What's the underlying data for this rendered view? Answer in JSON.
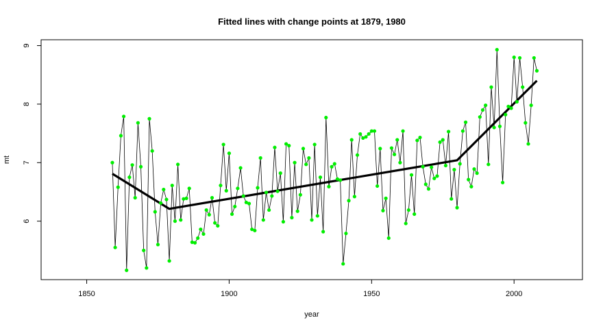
{
  "chart_data": {
    "type": "line",
    "title": "Fitted lines with change points at 1879, 1980",
    "xlabel": "year",
    "ylabel": "mt",
    "xlim": [
      1834,
      2024
    ],
    "ylim": [
      5.0,
      9.1
    ],
    "x_ticks": [
      "1850",
      "1900",
      "1950",
      "2000"
    ],
    "y_ticks": [
      "6",
      "7",
      "8",
      "9"
    ],
    "grid": false,
    "legend": "none",
    "colors": {
      "points": "#00ee00",
      "observed_line": "#000000",
      "fitted_line": "#000000"
    },
    "series": [
      {
        "values": [
          {
            "x": 1859,
            "y": 7.0
          },
          {
            "x": 1860,
            "y": 5.55
          },
          {
            "x": 1861,
            "y": 6.58
          },
          {
            "x": 1862,
            "y": 7.46
          },
          {
            "x": 1863,
            "y": 7.79
          },
          {
            "x": 1864,
            "y": 5.16
          },
          {
            "x": 1865,
            "y": 6.75
          },
          {
            "x": 1866,
            "y": 6.96
          },
          {
            "x": 1867,
            "y": 6.4
          },
          {
            "x": 1868,
            "y": 7.68
          },
          {
            "x": 1869,
            "y": 6.93
          },
          {
            "x": 1870,
            "y": 5.5
          },
          {
            "x": 1871,
            "y": 5.2
          },
          {
            "x": 1872,
            "y": 7.75
          },
          {
            "x": 1873,
            "y": 7.2
          },
          {
            "x": 1874,
            "y": 6.16
          },
          {
            "x": 1875,
            "y": 5.6
          },
          {
            "x": 1876,
            "y": 6.31
          },
          {
            "x": 1877,
            "y": 6.54
          },
          {
            "x": 1878,
            "y": 6.37
          },
          {
            "x": 1879,
            "y": 5.32
          },
          {
            "x": 1880,
            "y": 6.61
          },
          {
            "x": 1881,
            "y": 6.0
          },
          {
            "x": 1882,
            "y": 6.97
          },
          {
            "x": 1883,
            "y": 6.02
          },
          {
            "x": 1884,
            "y": 6.38
          },
          {
            "x": 1885,
            "y": 6.39
          },
          {
            "x": 1886,
            "y": 6.56
          },
          {
            "x": 1887,
            "y": 5.64
          },
          {
            "x": 1888,
            "y": 5.63
          },
          {
            "x": 1889,
            "y": 5.71
          },
          {
            "x": 1890,
            "y": 5.86
          },
          {
            "x": 1891,
            "y": 5.78
          },
          {
            "x": 1892,
            "y": 6.19
          },
          {
            "x": 1893,
            "y": 6.11
          },
          {
            "x": 1894,
            "y": 6.4
          },
          {
            "x": 1895,
            "y": 5.97
          },
          {
            "x": 1896,
            "y": 5.92
          },
          {
            "x": 1897,
            "y": 6.61
          },
          {
            "x": 1898,
            "y": 7.31
          },
          {
            "x": 1899,
            "y": 6.52
          },
          {
            "x": 1900,
            "y": 7.16
          },
          {
            "x": 1901,
            "y": 6.12
          },
          {
            "x": 1902,
            "y": 6.25
          },
          {
            "x": 1903,
            "y": 6.56
          },
          {
            "x": 1904,
            "y": 6.91
          },
          {
            "x": 1905,
            "y": 6.43
          },
          {
            "x": 1906,
            "y": 6.32
          },
          {
            "x": 1907,
            "y": 6.3
          },
          {
            "x": 1908,
            "y": 5.86
          },
          {
            "x": 1909,
            "y": 5.84
          },
          {
            "x": 1910,
            "y": 6.57
          },
          {
            "x": 1911,
            "y": 7.08
          },
          {
            "x": 1912,
            "y": 6.02
          },
          {
            "x": 1913,
            "y": 6.49
          },
          {
            "x": 1914,
            "y": 6.19
          },
          {
            "x": 1915,
            "y": 6.43
          },
          {
            "x": 1916,
            "y": 7.26
          },
          {
            "x": 1917,
            "y": 6.51
          },
          {
            "x": 1918,
            "y": 6.82
          },
          {
            "x": 1919,
            "y": 5.99
          },
          {
            "x": 1920,
            "y": 7.32
          },
          {
            "x": 1921,
            "y": 7.29
          },
          {
            "x": 1922,
            "y": 6.06
          },
          {
            "x": 1923,
            "y": 7.0
          },
          {
            "x": 1924,
            "y": 6.17
          },
          {
            "x": 1925,
            "y": 6.45
          },
          {
            "x": 1926,
            "y": 7.24
          },
          {
            "x": 1927,
            "y": 6.97
          },
          {
            "x": 1928,
            "y": 7.08
          },
          {
            "x": 1929,
            "y": 6.02
          },
          {
            "x": 1930,
            "y": 7.31
          },
          {
            "x": 1931,
            "y": 6.09
          },
          {
            "x": 1932,
            "y": 6.75
          },
          {
            "x": 1933,
            "y": 5.82
          },
          {
            "x": 1934,
            "y": 7.77
          },
          {
            "x": 1935,
            "y": 6.59
          },
          {
            "x": 1936,
            "y": 6.93
          },
          {
            "x": 1937,
            "y": 6.98
          },
          {
            "x": 1938,
            "y": 6.72
          },
          {
            "x": 1939,
            "y": 6.7
          },
          {
            "x": 1940,
            "y": 5.27
          },
          {
            "x": 1941,
            "y": 5.79
          },
          {
            "x": 1942,
            "y": 6.35
          },
          {
            "x": 1943,
            "y": 7.39
          },
          {
            "x": 1944,
            "y": 6.42
          },
          {
            "x": 1945,
            "y": 7.13
          },
          {
            "x": 1946,
            "y": 7.49
          },
          {
            "x": 1947,
            "y": 7.42
          },
          {
            "x": 1948,
            "y": 7.44
          },
          {
            "x": 1949,
            "y": 7.49
          },
          {
            "x": 1950,
            "y": 7.54
          },
          {
            "x": 1951,
            "y": 7.54
          },
          {
            "x": 1952,
            "y": 6.6
          },
          {
            "x": 1953,
            "y": 7.24
          },
          {
            "x": 1954,
            "y": 6.18
          },
          {
            "x": 1955,
            "y": 6.39
          },
          {
            "x": 1956,
            "y": 5.71
          },
          {
            "x": 1957,
            "y": 7.25
          },
          {
            "x": 1958,
            "y": 7.14
          },
          {
            "x": 1959,
            "y": 7.39
          },
          {
            "x": 1960,
            "y": 7.0
          },
          {
            "x": 1961,
            "y": 7.54
          },
          {
            "x": 1962,
            "y": 5.96
          },
          {
            "x": 1963,
            "y": 6.19
          },
          {
            "x": 1964,
            "y": 6.79
          },
          {
            "x": 1965,
            "y": 6.12
          },
          {
            "x": 1966,
            "y": 7.38
          },
          {
            "x": 1967,
            "y": 7.43
          },
          {
            "x": 1968,
            "y": 6.93
          },
          {
            "x": 1969,
            "y": 6.63
          },
          {
            "x": 1970,
            "y": 6.55
          },
          {
            "x": 1971,
            "y": 6.92
          },
          {
            "x": 1972,
            "y": 6.73
          },
          {
            "x": 1973,
            "y": 6.77
          },
          {
            "x": 1974,
            "y": 7.35
          },
          {
            "x": 1975,
            "y": 7.39
          },
          {
            "x": 1976,
            "y": 6.95
          },
          {
            "x": 1977,
            "y": 7.53
          },
          {
            "x": 1978,
            "y": 6.38
          },
          {
            "x": 1979,
            "y": 6.88
          },
          {
            "x": 1980,
            "y": 6.23
          },
          {
            "x": 1981,
            "y": 6.98
          },
          {
            "x": 1982,
            "y": 7.54
          },
          {
            "x": 1983,
            "y": 7.69
          },
          {
            "x": 1984,
            "y": 6.71
          },
          {
            "x": 1985,
            "y": 6.59
          },
          {
            "x": 1986,
            "y": 6.89
          },
          {
            "x": 1987,
            "y": 6.82
          },
          {
            "x": 1988,
            "y": 7.78
          },
          {
            "x": 1989,
            "y": 7.9
          },
          {
            "x": 1990,
            "y": 7.98
          },
          {
            "x": 1991,
            "y": 6.97
          },
          {
            "x": 1992,
            "y": 8.29
          },
          {
            "x": 1993,
            "y": 7.6
          },
          {
            "x": 1994,
            "y": 8.93
          },
          {
            "x": 1995,
            "y": 7.62
          },
          {
            "x": 1996,
            "y": 6.66
          },
          {
            "x": 1997,
            "y": 7.82
          },
          {
            "x": 1998,
            "y": 7.96
          },
          {
            "x": 1999,
            "y": 7.93
          },
          {
            "x": 2000,
            "y": 8.8
          },
          {
            "x": 2001,
            "y": 8.04
          },
          {
            "x": 2002,
            "y": 8.79
          },
          {
            "x": 2003,
            "y": 8.29
          },
          {
            "x": 2004,
            "y": 7.68
          },
          {
            "x": 2005,
            "y": 7.32
          },
          {
            "x": 2006,
            "y": 7.98
          },
          {
            "x": 2007,
            "y": 8.79
          },
          {
            "x": 2008,
            "y": 8.57
          }
        ]
      },
      {
        "values": [
          {
            "x": 1859,
            "y": 6.81
          },
          {
            "x": 1879,
            "y": 6.21
          },
          {
            "x": 1980,
            "y": 7.04
          },
          {
            "x": 2008,
            "y": 8.4
          }
        ]
      }
    ]
  }
}
